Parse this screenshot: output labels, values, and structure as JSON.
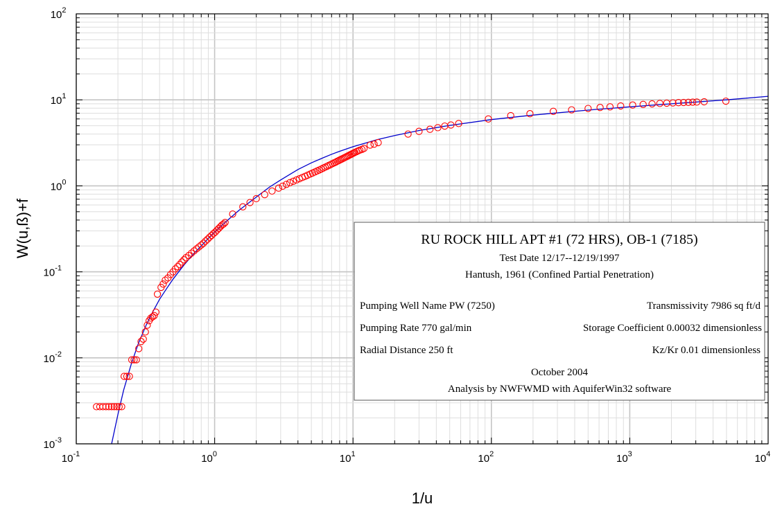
{
  "chart_data": {
    "type": "scatter",
    "xlabel": "1/u",
    "ylabel": "W(u,ß)+f",
    "x_scale": "log",
    "y_scale": "log",
    "xlim": [
      0.1,
      10000
    ],
    "ylim": [
      0.001,
      100
    ],
    "grid": true,
    "x_tick_labels": [
      {
        "base": "10",
        "exp": "-1"
      },
      {
        "base": "10",
        "exp": "0"
      },
      {
        "base": "10",
        "exp": "1"
      },
      {
        "base": "10",
        "exp": "2"
      },
      {
        "base": "10",
        "exp": "3"
      },
      {
        "base": "10",
        "exp": "4"
      }
    ],
    "y_tick_labels": [
      {
        "base": "10",
        "exp": "-3"
      },
      {
        "base": "10",
        "exp": "-2"
      },
      {
        "base": "10",
        "exp": "-1"
      },
      {
        "base": "10",
        "exp": "0"
      },
      {
        "base": "10",
        "exp": "1"
      },
      {
        "base": "10",
        "exp": "2"
      }
    ],
    "series": [
      {
        "marker": "circle",
        "color": "#ff0000",
        "points": [
          [
            0.14,
            0.0027
          ],
          [
            0.148,
            0.0027
          ],
          [
            0.156,
            0.0027
          ],
          [
            0.164,
            0.0027
          ],
          [
            0.172,
            0.0027
          ],
          [
            0.18,
            0.0027
          ],
          [
            0.188,
            0.0027
          ],
          [
            0.196,
            0.0027
          ],
          [
            0.204,
            0.0027
          ],
          [
            0.213,
            0.0027
          ],
          [
            0.222,
            0.0061
          ],
          [
            0.232,
            0.0061
          ],
          [
            0.242,
            0.0061
          ],
          [
            0.252,
            0.0095
          ],
          [
            0.262,
            0.0095
          ],
          [
            0.272,
            0.0095
          ],
          [
            0.283,
            0.0128
          ],
          [
            0.294,
            0.0155
          ],
          [
            0.305,
            0.0165
          ],
          [
            0.316,
            0.02
          ],
          [
            0.326,
            0.024
          ],
          [
            0.336,
            0.027
          ],
          [
            0.346,
            0.029
          ],
          [
            0.356,
            0.03
          ],
          [
            0.366,
            0.031
          ],
          [
            0.376,
            0.034
          ],
          [
            0.386,
            0.055
          ],
          [
            0.41,
            0.066
          ],
          [
            0.425,
            0.072
          ],
          [
            0.44,
            0.08
          ],
          [
            0.46,
            0.085
          ],
          [
            0.48,
            0.093
          ],
          [
            0.5,
            0.1
          ],
          [
            0.52,
            0.108
          ],
          [
            0.54,
            0.115
          ],
          [
            0.56,
            0.122
          ],
          [
            0.58,
            0.13
          ],
          [
            0.6,
            0.138
          ],
          [
            0.62,
            0.146
          ],
          [
            0.65,
            0.155
          ],
          [
            0.68,
            0.165
          ],
          [
            0.71,
            0.175
          ],
          [
            0.74,
            0.185
          ],
          [
            0.77,
            0.195
          ],
          [
            0.8,
            0.205
          ],
          [
            0.83,
            0.215
          ],
          [
            0.86,
            0.228
          ],
          [
            0.89,
            0.24
          ],
          [
            0.92,
            0.253
          ],
          [
            0.95,
            0.265
          ],
          [
            0.98,
            0.278
          ],
          [
            1.01,
            0.29
          ],
          [
            1.04,
            0.305
          ],
          [
            1.07,
            0.32
          ],
          [
            1.1,
            0.335
          ],
          [
            1.13,
            0.35
          ],
          [
            1.16,
            0.36
          ],
          [
            1.19,
            0.375
          ],
          [
            1.35,
            0.47
          ],
          [
            1.6,
            0.57
          ],
          [
            1.8,
            0.64
          ],
          [
            2.0,
            0.71
          ],
          [
            2.3,
            0.79
          ],
          [
            2.6,
            0.87
          ],
          [
            2.9,
            0.94
          ],
          [
            3.1,
            0.99
          ],
          [
            3.3,
            1.04
          ],
          [
            3.5,
            1.09
          ],
          [
            3.7,
            1.13
          ],
          [
            3.9,
            1.17
          ],
          [
            4.1,
            1.21
          ],
          [
            4.3,
            1.25
          ],
          [
            4.5,
            1.29
          ],
          [
            4.7,
            1.33
          ],
          [
            4.9,
            1.37
          ],
          [
            5.1,
            1.41
          ],
          [
            5.3,
            1.45
          ],
          [
            5.5,
            1.49
          ],
          [
            5.7,
            1.53
          ],
          [
            5.9,
            1.57
          ],
          [
            6.1,
            1.61
          ],
          [
            6.3,
            1.65
          ],
          [
            6.5,
            1.69
          ],
          [
            6.7,
            1.73
          ],
          [
            6.9,
            1.77
          ],
          [
            7.1,
            1.81
          ],
          [
            7.3,
            1.85
          ],
          [
            7.5,
            1.89
          ],
          [
            7.7,
            1.93
          ],
          [
            7.9,
            1.97
          ],
          [
            8.1,
            2.01
          ],
          [
            8.3,
            2.05
          ],
          [
            8.5,
            2.09
          ],
          [
            8.7,
            2.13
          ],
          [
            8.9,
            2.17
          ],
          [
            9.1,
            2.21
          ],
          [
            9.3,
            2.25
          ],
          [
            9.5,
            2.29
          ],
          [
            9.7,
            2.33
          ],
          [
            9.9,
            2.37
          ],
          [
            10.1,
            2.41
          ],
          [
            10.3,
            2.45
          ],
          [
            10.6,
            2.5
          ],
          [
            10.9,
            2.55
          ],
          [
            11.2,
            2.6
          ],
          [
            11.6,
            2.65
          ],
          [
            12.0,
            2.72
          ],
          [
            13.3,
            2.98
          ],
          [
            14.2,
            3.05
          ],
          [
            15.2,
            3.18
          ],
          [
            25,
            4.0
          ],
          [
            30,
            4.3
          ],
          [
            36,
            4.55
          ],
          [
            41,
            4.75
          ],
          [
            46,
            4.95
          ],
          [
            51,
            5.1
          ],
          [
            58,
            5.3
          ],
          [
            95,
            6.0
          ],
          [
            138,
            6.55
          ],
          [
            190,
            6.9
          ],
          [
            280,
            7.35
          ],
          [
            380,
            7.65
          ],
          [
            500,
            7.95
          ],
          [
            610,
            8.15
          ],
          [
            720,
            8.3
          ],
          [
            860,
            8.5
          ],
          [
            1050,
            8.7
          ],
          [
            1250,
            8.85
          ],
          [
            1450,
            8.98
          ],
          [
            1650,
            9.08
          ],
          [
            1850,
            9.15
          ],
          [
            2050,
            9.22
          ],
          [
            2250,
            9.28
          ],
          [
            2450,
            9.32
          ],
          [
            2650,
            9.36
          ],
          [
            2850,
            9.4
          ],
          [
            3050,
            9.43
          ],
          [
            3450,
            9.5
          ],
          [
            4950,
            9.65
          ]
        ]
      },
      {
        "type": "line",
        "color": "#0000cc",
        "points": [
          [
            0.18,
            0.001
          ],
          [
            0.2,
            0.0022
          ],
          [
            0.22,
            0.0042
          ],
          [
            0.25,
            0.0085
          ],
          [
            0.28,
            0.0145
          ],
          [
            0.32,
            0.024
          ],
          [
            0.36,
            0.035
          ],
          [
            0.4,
            0.048
          ],
          [
            0.45,
            0.064
          ],
          [
            0.5,
            0.082
          ],
          [
            0.6,
            0.12
          ],
          [
            0.7,
            0.16
          ],
          [
            0.8,
            0.2
          ],
          [
            0.9,
            0.245
          ],
          [
            1.0,
            0.29
          ],
          [
            1.2,
            0.38
          ],
          [
            1.5,
            0.52
          ],
          [
            2.0,
            0.74
          ],
          [
            2.5,
            0.97
          ],
          [
            3.0,
            1.17
          ],
          [
            4.0,
            1.55
          ],
          [
            5.0,
            1.85
          ],
          [
            6.0,
            2.1
          ],
          [
            7.0,
            2.33
          ],
          [
            8.0,
            2.52
          ],
          [
            10.0,
            2.85
          ],
          [
            15.0,
            3.45
          ],
          [
            20.0,
            3.85
          ],
          [
            30.0,
            4.4
          ],
          [
            50.0,
            5.05
          ],
          [
            100.0,
            5.9
          ],
          [
            200.0,
            6.65
          ],
          [
            500.0,
            7.6
          ],
          [
            1000.0,
            8.3
          ],
          [
            2000.0,
            9.0
          ],
          [
            5000.0,
            10.0
          ],
          [
            10000.0,
            11.0
          ]
        ]
      }
    ],
    "info_box": {
      "title": "RU ROCK HILL APT #1 (72 HRS), OB-1 (7185)",
      "test_date": "Test Date 12/17--12/19/1997",
      "method": "Hantush, 1961 (Confined Partial Penetration)",
      "rows": [
        {
          "left": "Pumping Well Name  PW (7250)",
          "right": "Transmissivity  7986  sq ft/d"
        },
        {
          "left": "Pumping Rate  770  gal/min",
          "right": "Storage Coefficient  0.00032  dimensionless"
        },
        {
          "left": "Radial Distance  250  ft",
          "right": "Kz/Kr  0.01  dimensionless"
        }
      ],
      "date": "October 2004",
      "credit": "Analysis by NWFWMD with AquiferWin32 software"
    }
  }
}
